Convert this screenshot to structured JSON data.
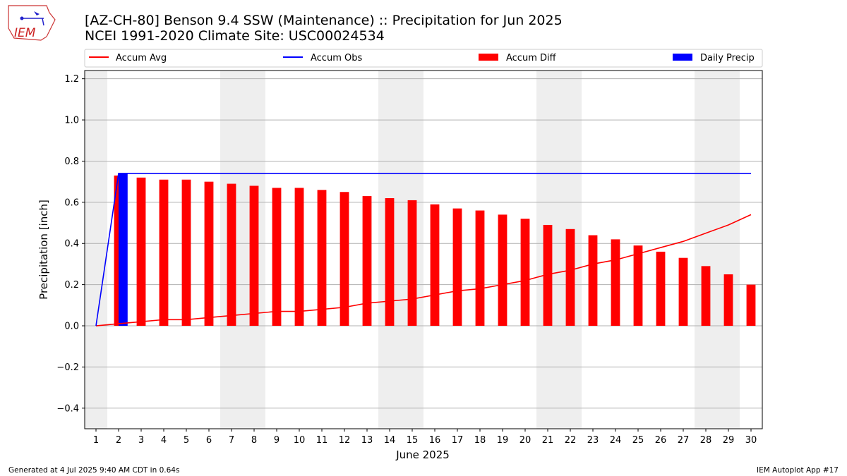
{
  "title": "[AZ-CH-80] Benson 9.4 SSW (Maintenance) :: Precipitation for Jun 2025",
  "subtitle": "NCEI 1991-2020 Climate Site: USC00024534",
  "logo_text": "IEM",
  "footer_left": "Generated at 4 Jul 2025 9:40 AM CDT in 0.64s",
  "footer_right": "IEM Autoplot App #17",
  "colors": {
    "avg": "#ff0000",
    "obs": "#0000ff",
    "diff": "#ff0000",
    "daily": "#0000ff",
    "weekend_shade": "#eeeeee",
    "grid": "#b0b0b0"
  },
  "chart_data": {
    "type": "bar",
    "xlabel": "June 2025",
    "ylabel": "Precipitation [inch]",
    "ylim": [
      -0.5,
      1.24
    ],
    "yticks": [
      -0.4,
      -0.2,
      0.0,
      0.2,
      0.4,
      0.6,
      0.8,
      1.0,
      1.2
    ],
    "ytick_labels": [
      "−0.4",
      "−0.2",
      "0.0",
      "0.2",
      "0.4",
      "0.6",
      "0.8",
      "1.0",
      "1.2"
    ],
    "x": [
      1,
      2,
      3,
      4,
      5,
      6,
      7,
      8,
      9,
      10,
      11,
      12,
      13,
      14,
      15,
      16,
      17,
      18,
      19,
      20,
      21,
      22,
      23,
      24,
      25,
      26,
      27,
      28,
      29,
      30
    ],
    "grid": true,
    "legend_position": "top",
    "shaded_weekend_days": [
      [
        1,
        1
      ],
      [
        7,
        8
      ],
      [
        14,
        15
      ],
      [
        21,
        22
      ],
      [
        28,
        29
      ]
    ],
    "series": [
      {
        "name": "Accum Avg",
        "kind": "line",
        "values": [
          0.0,
          0.01,
          0.02,
          0.03,
          0.03,
          0.04,
          0.05,
          0.06,
          0.07,
          0.07,
          0.08,
          0.09,
          0.11,
          0.12,
          0.13,
          0.15,
          0.17,
          0.18,
          0.2,
          0.22,
          0.25,
          0.27,
          0.3,
          0.32,
          0.35,
          0.38,
          0.41,
          0.45,
          0.49,
          0.54
        ]
      },
      {
        "name": "Accum Obs",
        "kind": "line",
        "values": [
          0.0,
          0.74,
          0.74,
          0.74,
          0.74,
          0.74,
          0.74,
          0.74,
          0.74,
          0.74,
          0.74,
          0.74,
          0.74,
          0.74,
          0.74,
          0.74,
          0.74,
          0.74,
          0.74,
          0.74,
          0.74,
          0.74,
          0.74,
          0.74,
          0.74,
          0.74,
          0.74,
          0.74,
          0.74,
          0.74
        ]
      },
      {
        "name": "Accum Diff",
        "kind": "bar",
        "values": [
          0.0,
          0.73,
          0.72,
          0.71,
          0.71,
          0.7,
          0.69,
          0.68,
          0.67,
          0.67,
          0.66,
          0.65,
          0.63,
          0.62,
          0.61,
          0.59,
          0.57,
          0.56,
          0.54,
          0.52,
          0.49,
          0.47,
          0.44,
          0.42,
          0.39,
          0.36,
          0.33,
          0.29,
          0.25,
          0.2
        ]
      },
      {
        "name": "Daily Precip",
        "kind": "bar",
        "values": [
          0,
          0.74,
          0,
          0,
          0,
          0,
          0,
          0,
          0,
          0,
          0,
          0,
          0,
          0,
          0,
          0,
          0,
          0,
          0,
          0,
          0,
          0,
          0,
          0,
          0,
          0,
          0,
          0,
          0,
          0
        ]
      }
    ]
  }
}
